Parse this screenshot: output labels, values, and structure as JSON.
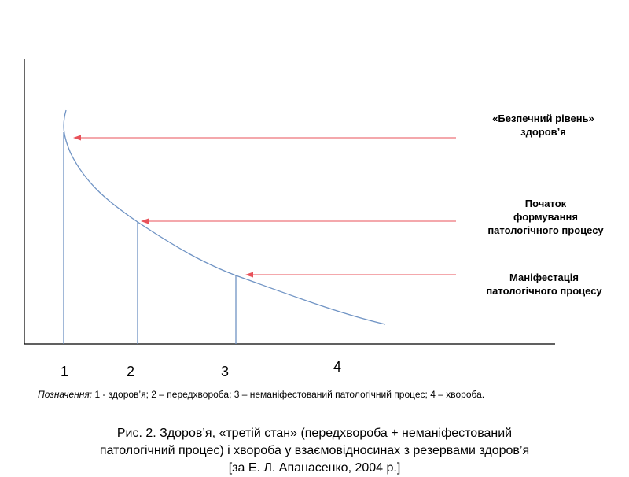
{
  "labels": {
    "safe_level": [
      "«Безпечний рівень»",
      "здоров’я"
    ],
    "onset": [
      "Початок",
      "формування",
      "патологічного процесу"
    ],
    "manifestation": [
      "Маніфестація",
      "патологічного процесу"
    ]
  },
  "axis_numbers": [
    "1",
    "2",
    "3",
    "4"
  ],
  "legend": {
    "key": "Позначення:",
    "text": " 1 - здоров’я; 2 – передхвороба; 3 – неманіфестований патологічний процес; 4 – хвороба."
  },
  "caption": {
    "line1": "Рис. 2. Здоров’я, «третій стан» (передхвороба + неманіфестований",
    "line2": "патологічний процес) і хвороба у взаємовідносинах з резервами здоров’я",
    "line3": "[за Е. Л. Апанасенко, 2004 р.]"
  },
  "colors": {
    "curve": "#6f93c4",
    "arrow": "#e8525a",
    "axis": "#000000"
  }
}
